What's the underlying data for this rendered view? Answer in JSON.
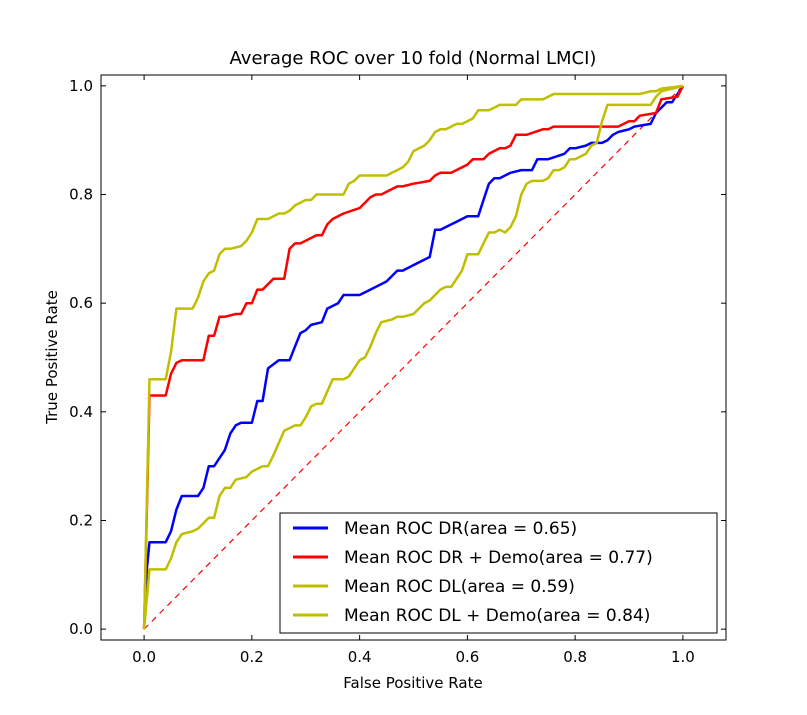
{
  "chart_data": {
    "type": "line",
    "title": "Average ROC over 10 fold (Normal LMCI)",
    "xlabel": "False Positive Rate",
    "ylabel": "True Positive Rate",
    "xlim": [
      -0.08,
      1.08
    ],
    "ylim": [
      -0.02,
      1.02
    ],
    "x_ticks": [
      "0.0",
      "0.2",
      "0.4",
      "0.6",
      "0.8",
      "1.0"
    ],
    "y_ticks": [
      "0.0",
      "0.2",
      "0.4",
      "0.6",
      "0.8",
      "1.0"
    ],
    "legend_position": "lower-right",
    "grid": false,
    "chance_line": {
      "color": "#ff0000",
      "style": "dashed",
      "x": [
        0,
        1
      ],
      "y": [
        0,
        1
      ]
    },
    "series": [
      {
        "name": "Mean ROC DR(area = 0.65)",
        "color": "#0000ff",
        "x": [
          0.0,
          0.005,
          0.01,
          0.04,
          0.05,
          0.06,
          0.07,
          0.1,
          0.11,
          0.12,
          0.13,
          0.15,
          0.16,
          0.17,
          0.18,
          0.2,
          0.21,
          0.22,
          0.23,
          0.25,
          0.27,
          0.28,
          0.29,
          0.3,
          0.31,
          0.33,
          0.34,
          0.36,
          0.37,
          0.4,
          0.42,
          0.43,
          0.45,
          0.47,
          0.48,
          0.5,
          0.51,
          0.53,
          0.54,
          0.55,
          0.57,
          0.58,
          0.6,
          0.62,
          0.63,
          0.64,
          0.65,
          0.66,
          0.67,
          0.68,
          0.7,
          0.72,
          0.73,
          0.74,
          0.75,
          0.78,
          0.79,
          0.8,
          0.82,
          0.83,
          0.85,
          0.86,
          0.87,
          0.88,
          0.9,
          0.91,
          0.94,
          0.95,
          0.97,
          0.98,
          1.0
        ],
        "y": [
          0.0,
          0.11,
          0.16,
          0.16,
          0.18,
          0.22,
          0.245,
          0.245,
          0.26,
          0.3,
          0.3,
          0.33,
          0.36,
          0.375,
          0.38,
          0.38,
          0.42,
          0.42,
          0.48,
          0.495,
          0.495,
          0.52,
          0.545,
          0.55,
          0.56,
          0.565,
          0.59,
          0.6,
          0.615,
          0.615,
          0.625,
          0.63,
          0.64,
          0.66,
          0.66,
          0.67,
          0.675,
          0.685,
          0.735,
          0.735,
          0.745,
          0.75,
          0.76,
          0.76,
          0.79,
          0.82,
          0.83,
          0.83,
          0.835,
          0.84,
          0.845,
          0.845,
          0.865,
          0.865,
          0.865,
          0.875,
          0.885,
          0.885,
          0.89,
          0.895,
          0.895,
          0.9,
          0.91,
          0.915,
          0.92,
          0.925,
          0.93,
          0.95,
          0.97,
          0.97,
          1.0
        ]
      },
      {
        "name": "Mean ROC DR + Demo(area = 0.77)",
        "color": "#ff0000",
        "x": [
          0.0,
          0.01,
          0.04,
          0.05,
          0.06,
          0.07,
          0.11,
          0.12,
          0.13,
          0.14,
          0.15,
          0.17,
          0.18,
          0.19,
          0.2,
          0.21,
          0.22,
          0.24,
          0.26,
          0.27,
          0.28,
          0.29,
          0.31,
          0.32,
          0.33,
          0.34,
          0.35,
          0.37,
          0.4,
          0.41,
          0.42,
          0.43,
          0.44,
          0.47,
          0.48,
          0.5,
          0.53,
          0.54,
          0.55,
          0.57,
          0.6,
          0.61,
          0.63,
          0.64,
          0.66,
          0.67,
          0.68,
          0.69,
          0.71,
          0.74,
          0.75,
          0.76,
          0.88,
          0.89,
          0.9,
          0.91,
          0.92,
          0.95,
          0.96,
          0.99,
          1.0
        ],
        "y": [
          0.0,
          0.43,
          0.43,
          0.47,
          0.49,
          0.495,
          0.495,
          0.54,
          0.54,
          0.575,
          0.575,
          0.58,
          0.58,
          0.6,
          0.6,
          0.625,
          0.625,
          0.645,
          0.645,
          0.7,
          0.71,
          0.71,
          0.72,
          0.725,
          0.725,
          0.745,
          0.755,
          0.765,
          0.775,
          0.785,
          0.795,
          0.8,
          0.8,
          0.815,
          0.815,
          0.82,
          0.825,
          0.835,
          0.84,
          0.84,
          0.855,
          0.865,
          0.865,
          0.875,
          0.885,
          0.885,
          0.89,
          0.91,
          0.91,
          0.92,
          0.92,
          0.925,
          0.925,
          0.93,
          0.935,
          0.935,
          0.945,
          0.95,
          0.975,
          0.98,
          1.0
        ]
      },
      {
        "name": "Mean ROC DL(area = 0.59)",
        "color": "#bfbf00",
        "x": [
          0.0,
          0.01,
          0.04,
          0.05,
          0.06,
          0.07,
          0.09,
          0.1,
          0.11,
          0.12,
          0.13,
          0.14,
          0.15,
          0.16,
          0.17,
          0.19,
          0.2,
          0.22,
          0.23,
          0.24,
          0.26,
          0.28,
          0.29,
          0.3,
          0.31,
          0.32,
          0.33,
          0.35,
          0.37,
          0.38,
          0.39,
          0.4,
          0.41,
          0.42,
          0.43,
          0.44,
          0.46,
          0.47,
          0.48,
          0.5,
          0.52,
          0.53,
          0.54,
          0.55,
          0.56,
          0.57,
          0.59,
          0.6,
          0.61,
          0.62,
          0.63,
          0.64,
          0.65,
          0.66,
          0.67,
          0.68,
          0.69,
          0.7,
          0.71,
          0.72,
          0.74,
          0.75,
          0.76,
          0.77,
          0.78,
          0.79,
          0.8,
          0.82,
          0.83,
          0.84,
          0.85,
          0.86,
          0.87,
          0.88,
          0.9,
          0.93,
          0.94,
          0.95,
          0.96,
          0.98,
          1.0
        ],
        "y": [
          0.0,
          0.11,
          0.11,
          0.13,
          0.16,
          0.175,
          0.18,
          0.185,
          0.195,
          0.205,
          0.205,
          0.245,
          0.26,
          0.26,
          0.275,
          0.28,
          0.29,
          0.3,
          0.3,
          0.32,
          0.365,
          0.375,
          0.375,
          0.39,
          0.41,
          0.415,
          0.415,
          0.46,
          0.46,
          0.465,
          0.48,
          0.495,
          0.5,
          0.52,
          0.545,
          0.565,
          0.57,
          0.575,
          0.575,
          0.58,
          0.6,
          0.605,
          0.615,
          0.625,
          0.63,
          0.63,
          0.66,
          0.69,
          0.69,
          0.69,
          0.71,
          0.73,
          0.73,
          0.735,
          0.73,
          0.74,
          0.76,
          0.8,
          0.82,
          0.825,
          0.825,
          0.83,
          0.845,
          0.845,
          0.85,
          0.865,
          0.865,
          0.875,
          0.89,
          0.895,
          0.935,
          0.965,
          0.965,
          0.965,
          0.965,
          0.965,
          0.965,
          0.98,
          0.99,
          0.995,
          1.0
        ]
      },
      {
        "name": "Mean ROC DL + Demo(area = 0.84)",
        "color": "#bfbf00",
        "x": [
          0.0,
          0.01,
          0.04,
          0.05,
          0.06,
          0.09,
          0.1,
          0.11,
          0.12,
          0.13,
          0.14,
          0.15,
          0.16,
          0.18,
          0.19,
          0.2,
          0.21,
          0.22,
          0.23,
          0.24,
          0.25,
          0.26,
          0.27,
          0.28,
          0.3,
          0.31,
          0.32,
          0.33,
          0.34,
          0.37,
          0.38,
          0.39,
          0.4,
          0.43,
          0.44,
          0.45,
          0.46,
          0.47,
          0.48,
          0.49,
          0.5,
          0.52,
          0.53,
          0.54,
          0.55,
          0.56,
          0.57,
          0.58,
          0.59,
          0.6,
          0.61,
          0.62,
          0.64,
          0.65,
          0.66,
          0.69,
          0.7,
          0.71,
          0.74,
          0.75,
          0.76,
          0.92,
          0.94,
          0.95,
          0.96,
          1.0
        ],
        "y": [
          0.0,
          0.46,
          0.46,
          0.51,
          0.59,
          0.59,
          0.61,
          0.64,
          0.655,
          0.66,
          0.69,
          0.7,
          0.7,
          0.705,
          0.715,
          0.73,
          0.755,
          0.755,
          0.755,
          0.76,
          0.765,
          0.765,
          0.77,
          0.78,
          0.79,
          0.79,
          0.8,
          0.8,
          0.8,
          0.8,
          0.82,
          0.825,
          0.835,
          0.835,
          0.835,
          0.835,
          0.84,
          0.845,
          0.85,
          0.86,
          0.88,
          0.89,
          0.9,
          0.915,
          0.92,
          0.92,
          0.925,
          0.93,
          0.93,
          0.935,
          0.94,
          0.955,
          0.955,
          0.96,
          0.965,
          0.965,
          0.975,
          0.975,
          0.975,
          0.98,
          0.985,
          0.985,
          0.99,
          0.99,
          0.995,
          1.0
        ]
      }
    ]
  }
}
